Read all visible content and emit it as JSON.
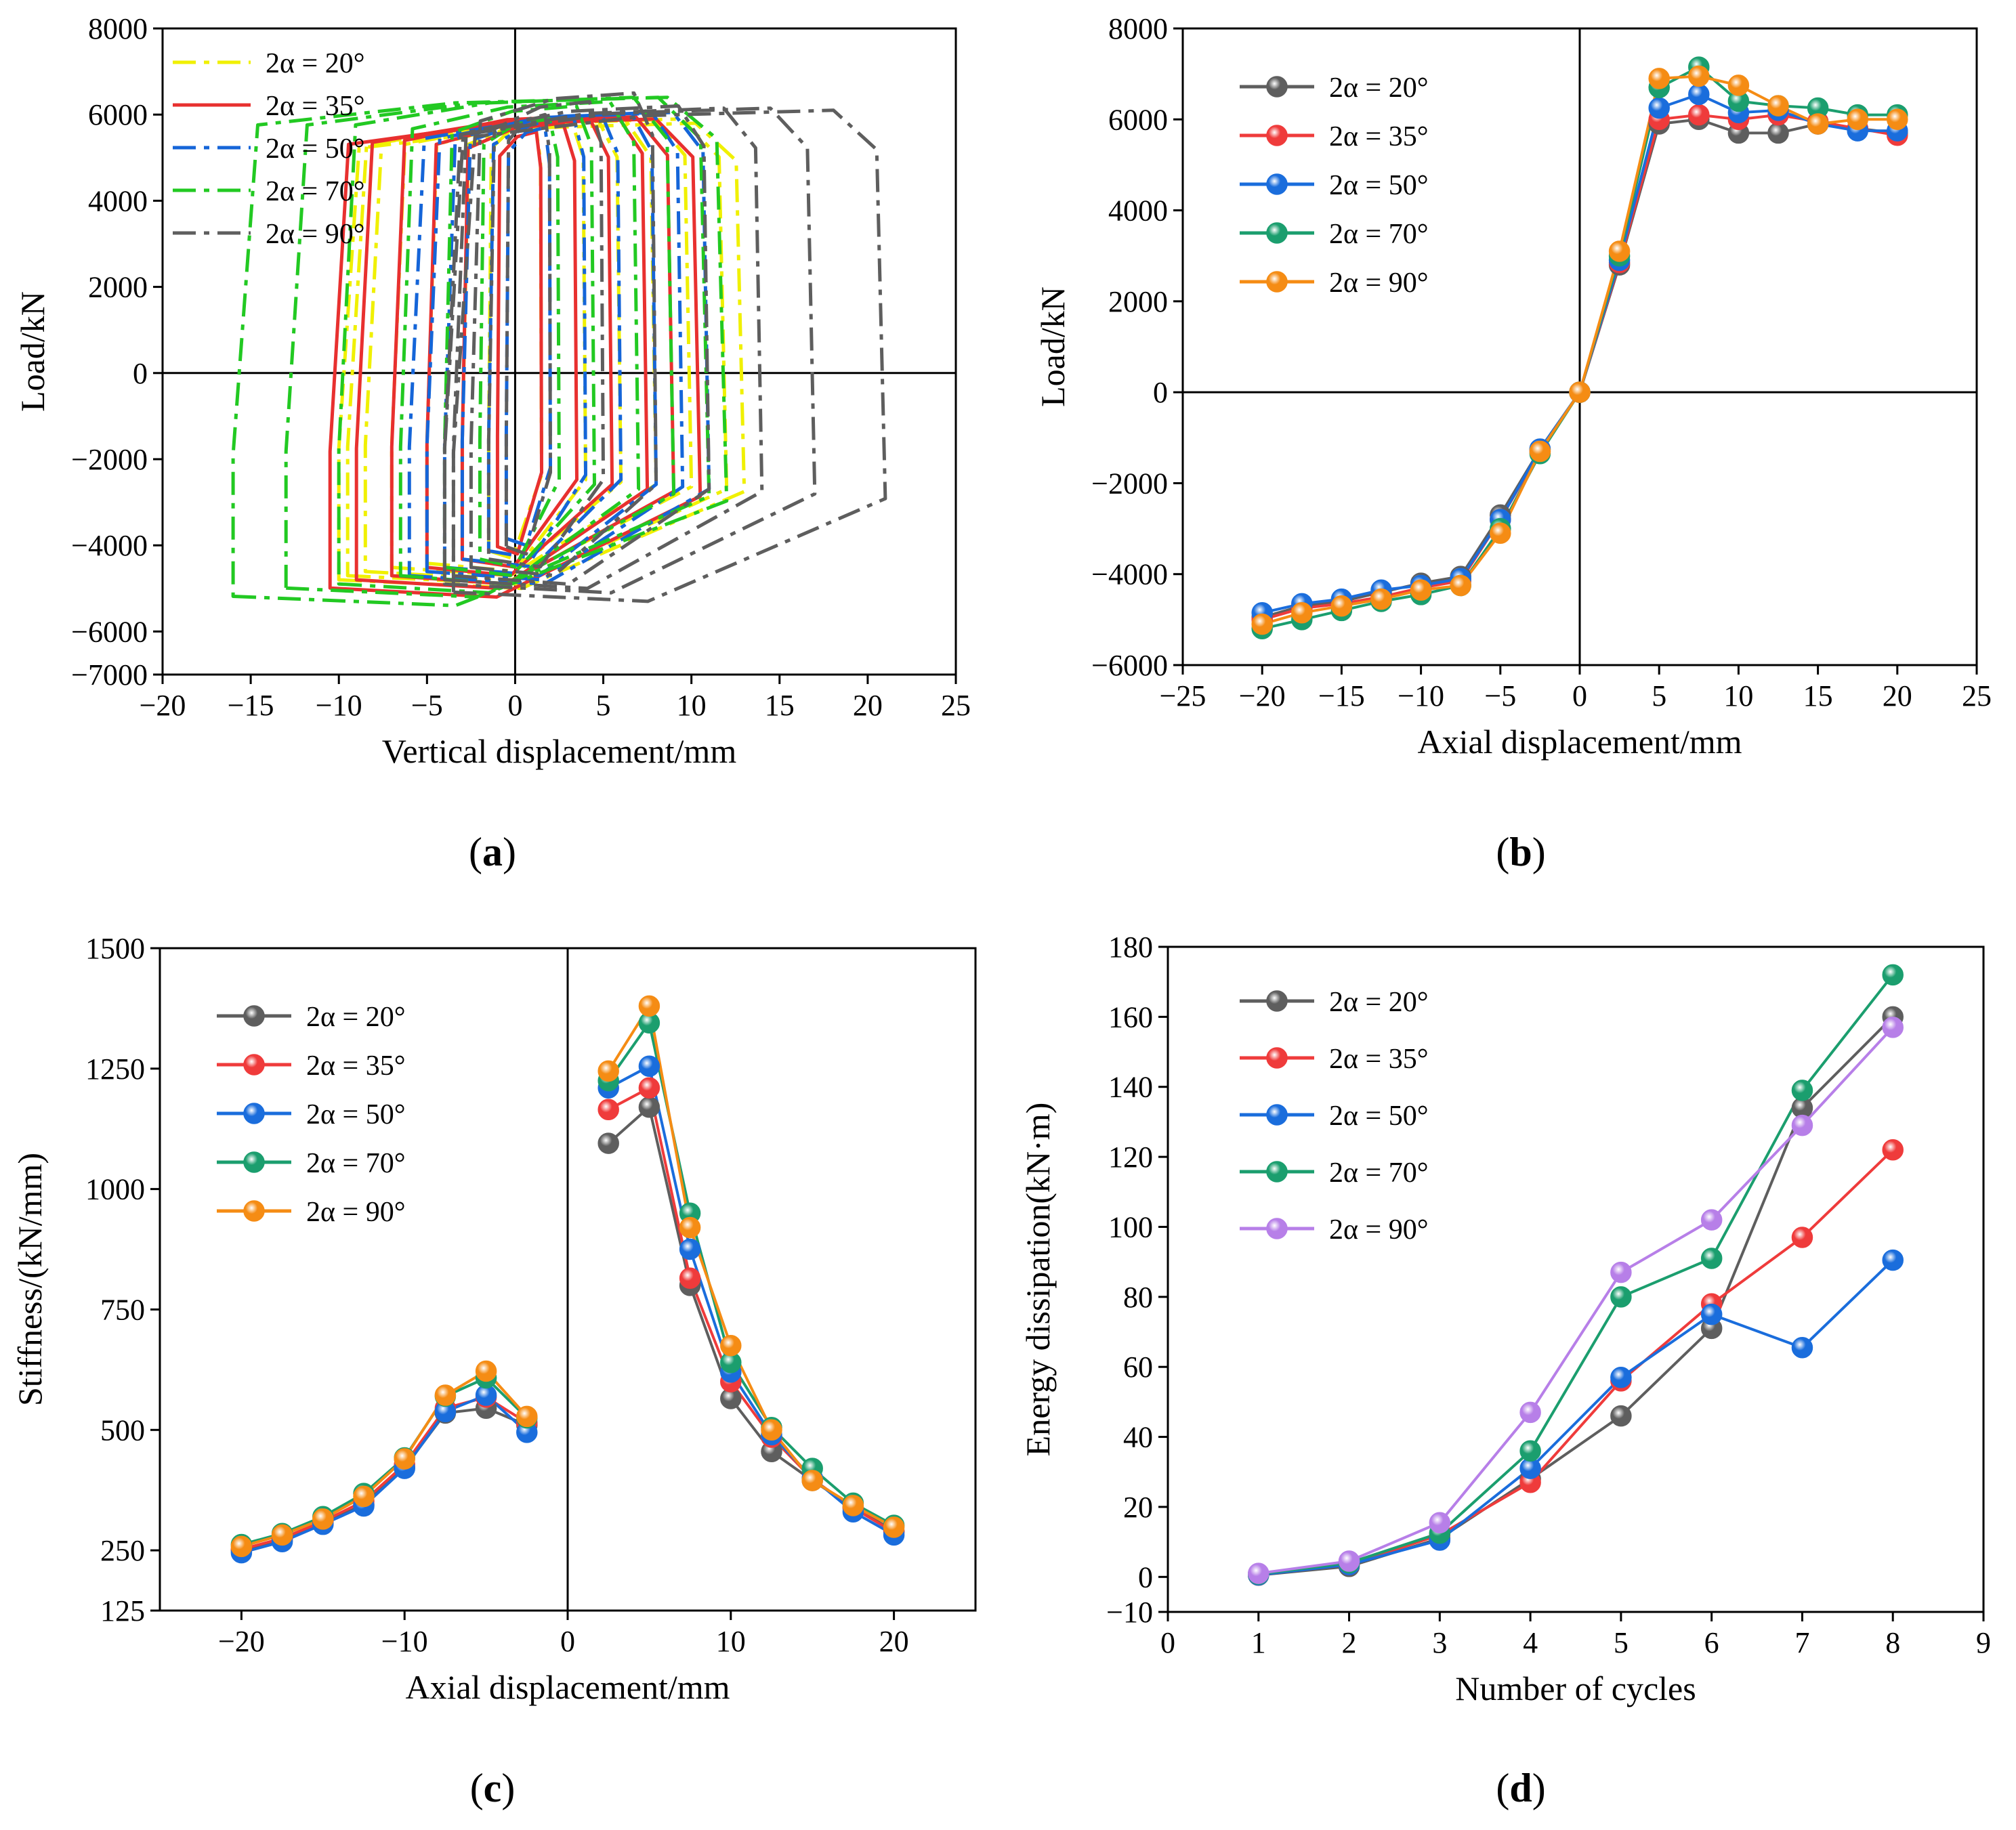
{
  "figure": {
    "panels": [
      {
        "open": "(",
        "letter": "a",
        "close": ")"
      },
      {
        "open": "(",
        "letter": "b",
        "close": ")"
      },
      {
        "open": "(",
        "letter": "c",
        "close": ")"
      },
      {
        "open": "(",
        "letter": "d",
        "close": ")"
      }
    ]
  },
  "chart_data": [
    {
      "id": "a",
      "type": "line",
      "title": "",
      "xlabel": "Vertical displacement/mm",
      "ylabel": "Load/kN",
      "xlim": [
        -20,
        25
      ],
      "ylim": [
        -7000,
        8000
      ],
      "xticks": [
        -20,
        -15,
        -10,
        -5,
        0,
        5,
        10,
        15,
        20,
        25
      ],
      "xtick_labels": [
        "−20",
        "−15",
        "−10",
        "−5",
        "0",
        "5",
        "10",
        "15",
        "20",
        "25"
      ],
      "yticks": [
        -7000,
        -6000,
        -4000,
        -2000,
        0,
        2000,
        4000,
        6000,
        8000
      ],
      "ytick_labels": [
        "−7000",
        "−6000",
        "−4000",
        "−2000",
        "0",
        "2000",
        "4000",
        "6000",
        "8000"
      ],
      "zero_lines": true,
      "legend_position": "top-left",
      "series": [
        {
          "name": "2α = 20°",
          "color": "#f0f000",
          "dash": "dashdot",
          "loops": [
            [
              -1.5,
              1.5,
              -4300,
              5800
            ],
            [
              -3,
              4,
              -4500,
              5900
            ],
            [
              -5,
              6,
              -4600,
              5900
            ],
            [
              -7,
              8,
              -4700,
              5900
            ],
            [
              -8.5,
              10,
              -4800,
              5950
            ],
            [
              -9.5,
              12,
              -4900,
              5900
            ],
            [
              -10,
              13,
              -5000,
              5800
            ]
          ]
        },
        {
          "name": "2α = 35°",
          "color": "#e8302f",
          "dash": "solid",
          "loops": [
            [
              -1,
              1.5,
              -4200,
              5600
            ],
            [
              -3,
              3.5,
              -4500,
              5800
            ],
            [
              -5,
              5.5,
              -4700,
              5900
            ],
            [
              -7,
              7.5,
              -4900,
              6000
            ],
            [
              -9,
              9,
              -5000,
              5950
            ],
            [
              -10.5,
              10.5,
              -5200,
              5900
            ]
          ]
        },
        {
          "name": "2α = 50°",
          "color": "#1565d8",
          "dash": "dashdot",
          "loops": [
            [
              -0.5,
              2,
              -4000,
              5700
            ],
            [
              -1.5,
              4,
              -4300,
              5900
            ],
            [
              -3,
              6,
              -4500,
              6000
            ],
            [
              -4,
              8,
              -4700,
              6050
            ],
            [
              -5,
              9.5,
              -4800,
              6050
            ],
            [
              -6,
              11,
              -4900,
              6050
            ]
          ]
        },
        {
          "name": "2α = 70°",
          "color": "#22c922",
          "dash": "dashdot",
          "loops": [
            [
              -2,
              2.5,
              -4500,
              5900
            ],
            [
              -4,
              4.5,
              -4700,
              6200
            ],
            [
              -6.5,
              7,
              -4900,
              6300
            ],
            [
              -10,
              9,
              -5100,
              6400
            ],
            [
              -13,
              11,
              -5200,
              6400
            ],
            [
              -16,
              12,
              -5400,
              6400
            ]
          ]
        },
        {
          "name": "2α = 90°",
          "color": "#5e5e5e",
          "dash": "dashdot",
          "loops": [
            [
              -0.5,
              2,
              -4200,
              6000
            ],
            [
              -1.5,
              5,
              -4500,
              6300
            ],
            [
              -2.5,
              8,
              -4700,
              6500
            ],
            [
              -3.5,
              11,
              -4900,
              6200
            ],
            [
              -4,
              14,
              -5000,
              6150
            ],
            [
              -4,
              17,
              -5100,
              6150
            ],
            [
              -3.5,
              21,
              -5300,
              6100
            ]
          ]
        }
      ]
    },
    {
      "id": "b",
      "type": "line",
      "title": "",
      "xlabel": "Axial displacement/mm",
      "ylabel": "Load/kN",
      "xlim": [
        -25,
        25
      ],
      "ylim": [
        -6000,
        8000
      ],
      "xticks": [
        -25,
        -20,
        -15,
        -10,
        -5,
        0,
        5,
        10,
        15,
        20,
        25
      ],
      "xtick_labels": [
        "−25",
        "−20",
        "−15",
        "−10",
        "−5",
        "0",
        "5",
        "10",
        "15",
        "20",
        "25"
      ],
      "yticks": [
        -6000,
        -4000,
        -2000,
        0,
        2000,
        4000,
        6000,
        8000
      ],
      "ytick_labels": [
        "−6000",
        "−4000",
        "−2000",
        "0",
        "2000",
        "4000",
        "6000",
        "8000"
      ],
      "zero_lines": true,
      "legend_position": "top-left",
      "x": [
        -20,
        -17.5,
        -15,
        -12.5,
        -10,
        -7.5,
        -5,
        -2.5,
        0,
        2.5,
        5,
        7.5,
        10,
        12.5,
        15,
        17.5,
        20
      ],
      "series": [
        {
          "name": "2α = 20°",
          "color": "#5e5e5e",
          "values": [
            -4950,
            -4700,
            -4600,
            -4400,
            -4200,
            -4050,
            -2700,
            -1250,
            0,
            2800,
            5900,
            6000,
            5700,
            5700,
            5900,
            5800,
            5700
          ]
        },
        {
          "name": "2α = 35°",
          "color": "#ef3b3b",
          "values": [
            -5000,
            -4750,
            -4650,
            -4500,
            -4300,
            -4150,
            -2800,
            -1300,
            0,
            2850,
            6000,
            6100,
            6000,
            6100,
            5950,
            5800,
            5650
          ]
        },
        {
          "name": "2α = 50°",
          "color": "#1a6ddc",
          "values": [
            -4850,
            -4650,
            -4550,
            -4350,
            -4250,
            -4100,
            -2800,
            -1250,
            0,
            2900,
            6250,
            6550,
            6150,
            6200,
            5900,
            5750,
            5750
          ]
        },
        {
          "name": "2α = 70°",
          "color": "#1b9e6e",
          "values": [
            -5200,
            -5000,
            -4800,
            -4600,
            -4450,
            -4250,
            -3000,
            -1350,
            0,
            3000,
            6700,
            7150,
            6400,
            6300,
            6250,
            6100,
            6100
          ]
        },
        {
          "name": "2α = 90°",
          "color": "#f58c14",
          "values": [
            -5100,
            -4850,
            -4700,
            -4550,
            -4350,
            -4250,
            -3100,
            -1300,
            0,
            3100,
            6900,
            6950,
            6750,
            6300,
            5900,
            6000,
            6000
          ]
        }
      ]
    },
    {
      "id": "c",
      "type": "line",
      "title": "",
      "xlabel": "Axial displacement/mm",
      "ylabel": "Stiffness/(kN/mm)",
      "xlim": [
        -25,
        25
      ],
      "ylim": [
        125,
        1500
      ],
      "xticks": [
        -20,
        -10,
        0,
        10,
        20
      ],
      "xtick_labels": [
        "−20",
        "−10",
        "0",
        "10",
        "20"
      ],
      "yticks": [
        125,
        250,
        500,
        750,
        1000,
        1250,
        1500
      ],
      "ytick_labels": [
        "125",
        "250",
        "500",
        "750",
        "1000",
        "1250",
        "1500"
      ],
      "zero_lines": "vertical",
      "legend_position": "top-left",
      "x_neg": [
        -20,
        -17.5,
        -15,
        -12.5,
        -10,
        -7.5,
        -5,
        -2.5
      ],
      "x_pos": [
        2.5,
        5,
        7.5,
        10,
        12.5,
        15,
        17.5,
        20
      ],
      "series": [
        {
          "name": "2α = 20°",
          "color": "#5e5e5e",
          "neg": [
            250,
            272,
            306,
            345,
            422,
            535,
            545,
            510
          ],
          "pos": [
            1095,
            1170,
            800,
            565,
            455,
            395,
            340,
            290
          ]
        },
        {
          "name": "2α = 35°",
          "color": "#ef3b3b",
          "neg": [
            252,
            275,
            310,
            352,
            428,
            545,
            568,
            515
          ],
          "pos": [
            1165,
            1210,
            815,
            600,
            485,
            398,
            338,
            288
          ]
        },
        {
          "name": "2α = 50°",
          "color": "#1a6ddc",
          "neg": [
            245,
            268,
            304,
            342,
            420,
            538,
            572,
            495
          ],
          "pos": [
            1210,
            1255,
            875,
            620,
            490,
            400,
            330,
            282
          ]
        },
        {
          "name": "2α = 70°",
          "color": "#1b9e6e",
          "neg": [
            262,
            285,
            320,
            368,
            442,
            570,
            608,
            525
          ],
          "pos": [
            1225,
            1345,
            950,
            640,
            505,
            420,
            348,
            302
          ]
        },
        {
          "name": "2α = 90°",
          "color": "#f58c14",
          "neg": [
            258,
            282,
            315,
            362,
            440,
            572,
            622,
            528
          ],
          "pos": [
            1245,
            1380,
            920,
            675,
            500,
            395,
            343,
            298
          ]
        }
      ]
    },
    {
      "id": "d",
      "type": "line",
      "title": "",
      "xlabel": "Number of cycles",
      "ylabel": "Energy dissipation(kN·m)",
      "xlim": [
        0,
        9
      ],
      "ylim": [
        -10,
        180
      ],
      "xticks": [
        0,
        1,
        2,
        3,
        4,
        5,
        6,
        7,
        8,
        9
      ],
      "xtick_labels": [
        "0",
        "1",
        "2",
        "3",
        "4",
        "5",
        "6",
        "7",
        "8",
        "9"
      ],
      "yticks": [
        -10,
        0,
        20,
        40,
        60,
        80,
        100,
        120,
        140,
        160,
        180
      ],
      "ytick_labels": [
        "−10",
        "0",
        "20",
        "40",
        "60",
        "80",
        "100",
        "120",
        "140",
        "160",
        "180"
      ],
      "zero_lines": false,
      "legend_position": "top-left",
      "x": [
        1,
        2,
        3,
        4,
        5,
        6,
        7,
        8
      ],
      "series": [
        {
          "name": "2α = 20°",
          "color": "#5e5e5e",
          "values": [
            0.5,
            3,
            11,
            28,
            46,
            71,
            134,
            160
          ]
        },
        {
          "name": "2α = 35°",
          "color": "#ef3b3b",
          "values": [
            0.7,
            3.5,
            12,
            27,
            56,
            78,
            97,
            122
          ]
        },
        {
          "name": "2α = 50°",
          "color": "#1a6ddc",
          "values": [
            0.6,
            3.5,
            10.5,
            31,
            57,
            75,
            65.5,
            90.5
          ]
        },
        {
          "name": "2α = 70°",
          "color": "#1b9e6e",
          "values": [
            0.8,
            4,
            12.5,
            36,
            80,
            91,
            139,
            172
          ]
        },
        {
          "name": "2α = 90°",
          "color": "#b77fe8",
          "values": [
            1,
            4.5,
            15.5,
            47,
            87,
            102,
            129,
            157
          ]
        }
      ]
    }
  ]
}
